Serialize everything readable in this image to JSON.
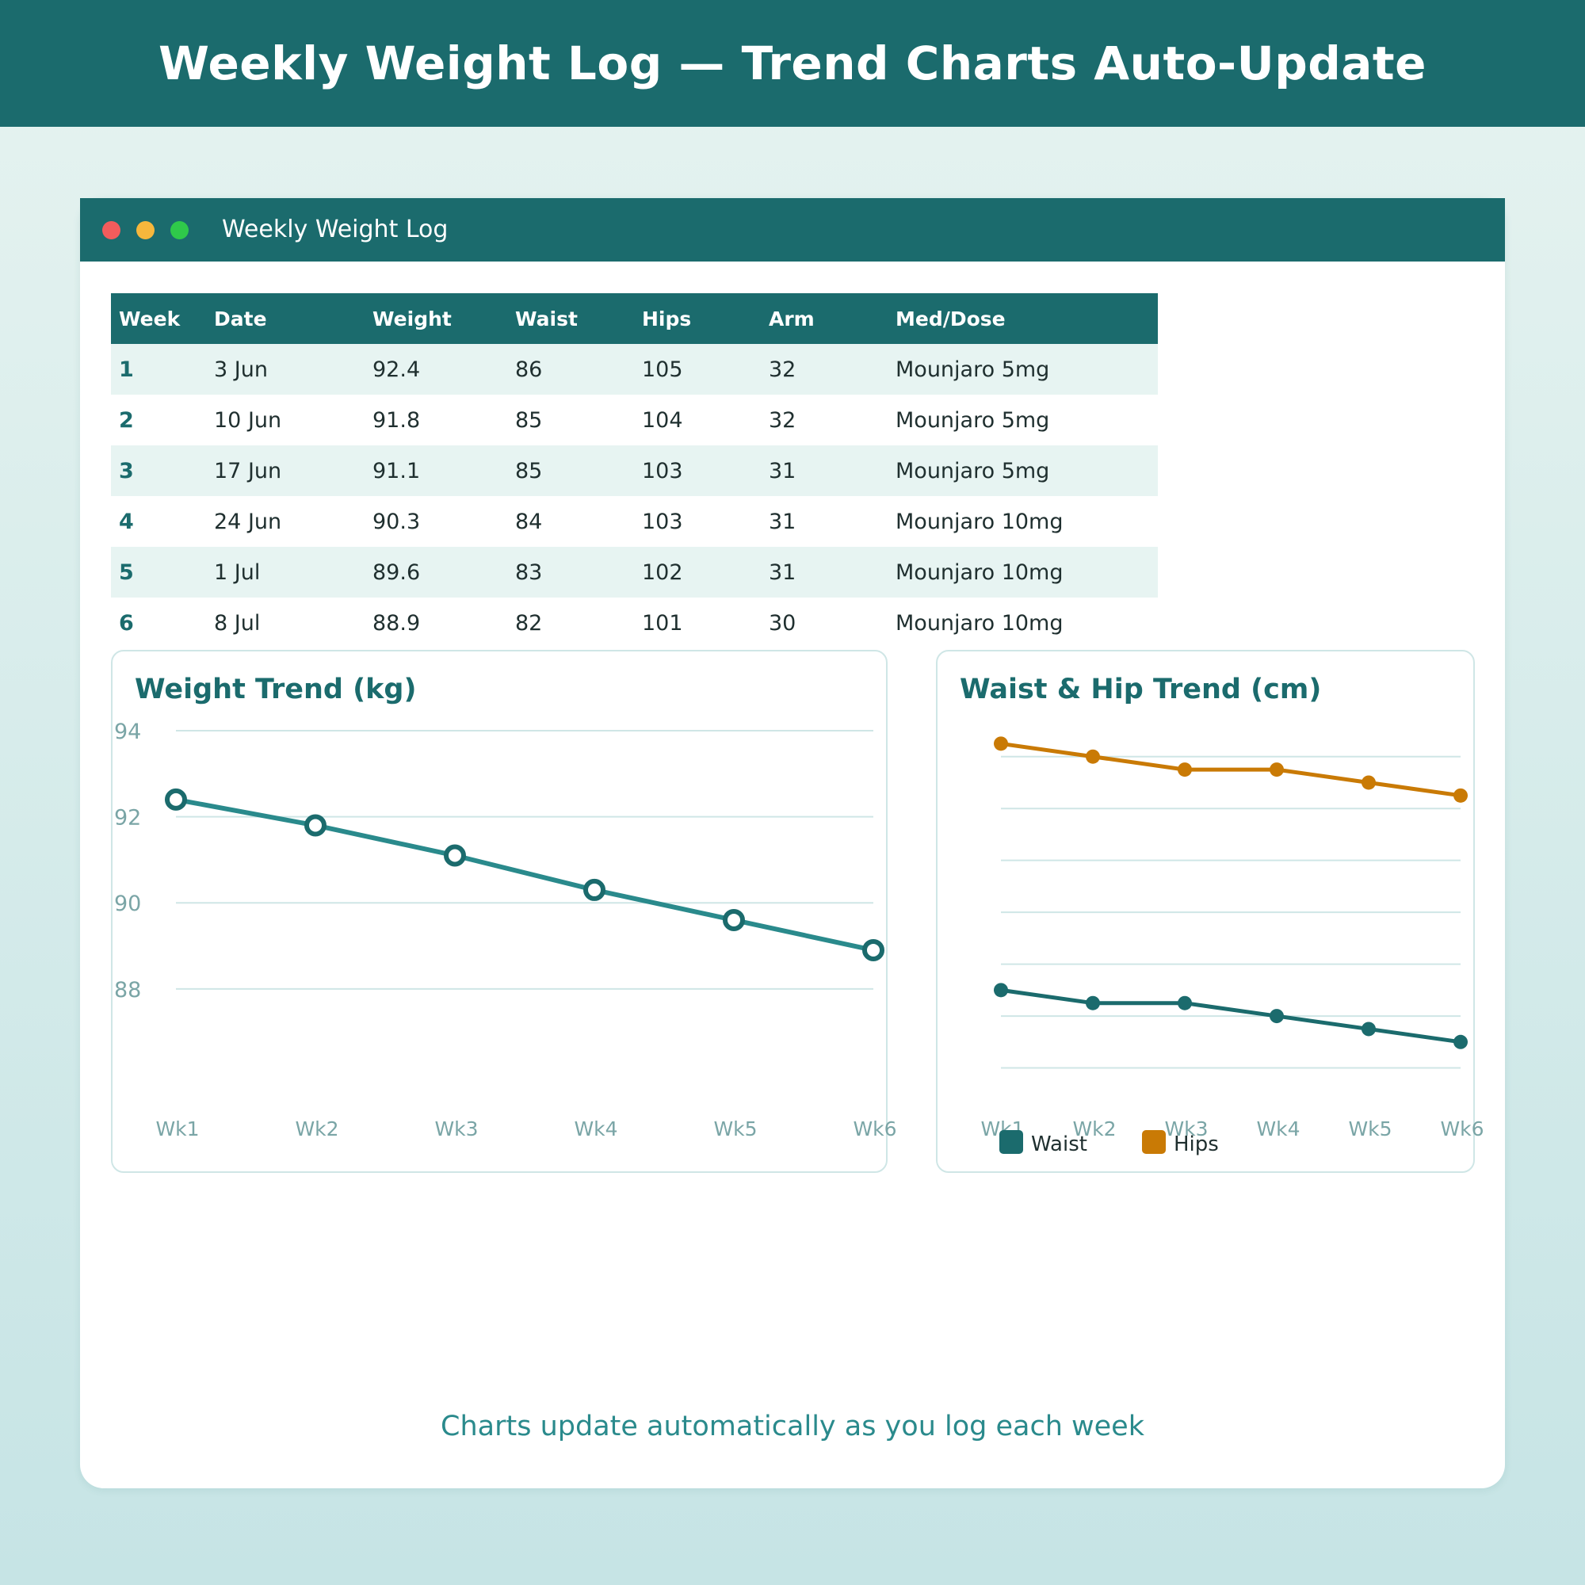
{
  "banner": {
    "title": "Weekly Weight Log — Trend Charts Auto-Update"
  },
  "window": {
    "title": "Weekly Weight Log"
  },
  "table": {
    "headers": [
      "Week",
      "Date",
      "Weight",
      "Waist",
      "Hips",
      "Arm",
      "Med/Dose"
    ],
    "rows": [
      [
        "1",
        "3 Jun",
        "92.4",
        "86",
        "105",
        "32",
        "Mounjaro 5mg"
      ],
      [
        "2",
        "10 Jun",
        "91.8",
        "85",
        "104",
        "32",
        "Mounjaro 5mg"
      ],
      [
        "3",
        "17 Jun",
        "91.1",
        "85",
        "103",
        "31",
        "Mounjaro 5mg"
      ],
      [
        "4",
        "24 Jun",
        "90.3",
        "84",
        "103",
        "31",
        "Mounjaro 10mg"
      ],
      [
        "5",
        "1 Jul",
        "89.6",
        "83",
        "102",
        "31",
        "Mounjaro 10mg"
      ],
      [
        "6",
        "8 Jul",
        "88.9",
        "82",
        "101",
        "30",
        "Mounjaro 10mg"
      ]
    ]
  },
  "chart_data": [
    {
      "type": "line",
      "title": "Weight Trend (kg)",
      "x": [
        "Wk1",
        "Wk2",
        "Wk3",
        "Wk4",
        "Wk5",
        "Wk6"
      ],
      "series": [
        {
          "values": [
            92.4,
            91.8,
            91.1,
            90.3,
            89.6,
            88.9
          ],
          "color": "#2a8a8c"
        }
      ],
      "yticks": [
        94,
        92,
        90,
        88
      ],
      "ylim": [
        86.8,
        94
      ],
      "grid": true
    },
    {
      "type": "line",
      "title": "Waist & Hip Trend (cm)",
      "x": [
        "Wk1",
        "Wk2",
        "Wk3",
        "Wk4",
        "Wk5",
        "Wk6"
      ],
      "series": [
        {
          "name": "Waist",
          "values": [
            86,
            85,
            85,
            84,
            83,
            82
          ],
          "color": "#1b6b6d"
        },
        {
          "name": "Hips",
          "values": [
            105,
            104,
            103,
            103,
            102,
            101
          ],
          "color": "#c97a05"
        }
      ],
      "ylim": [
        78.2,
        106
      ],
      "grid": true,
      "legend": "bottom-left"
    }
  ],
  "footnote": "Charts update automatically as you log each week"
}
